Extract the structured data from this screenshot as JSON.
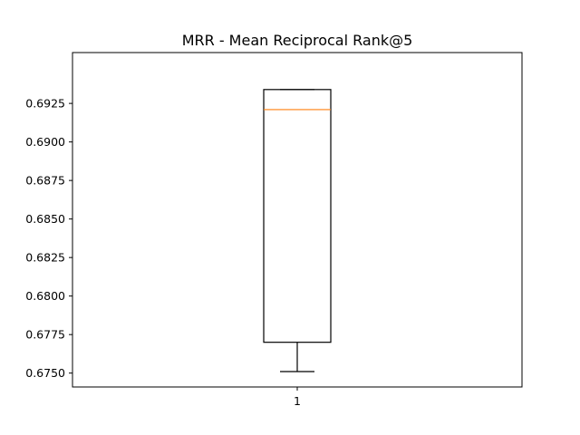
{
  "chart_data": {
    "type": "boxplot",
    "title": "MRR - Mean Reciprocal Rank@5",
    "xlabel": "",
    "ylabel": "",
    "categories": [
      "1"
    ],
    "boxes": [
      {
        "category": "1",
        "whisker_low": 0.6751,
        "q1": 0.677,
        "median": 0.6921,
        "q3": 0.6934,
        "whisker_high": 0.6934
      }
    ],
    "ylim": [
      0.6741,
      0.6958
    ],
    "yticks": [
      0.675,
      0.6775,
      0.68,
      0.6825,
      0.685,
      0.6875,
      0.69,
      0.6925
    ],
    "ytick_labels": [
      "0.6750",
      "0.6775",
      "0.6800",
      "0.6825",
      "0.6850",
      "0.6875",
      "0.6900",
      "0.6925"
    ],
    "grid": false,
    "colors": {
      "box": "#000000",
      "median": "#ff7f0e",
      "whisker": "#000000",
      "axes": "#000000"
    }
  }
}
